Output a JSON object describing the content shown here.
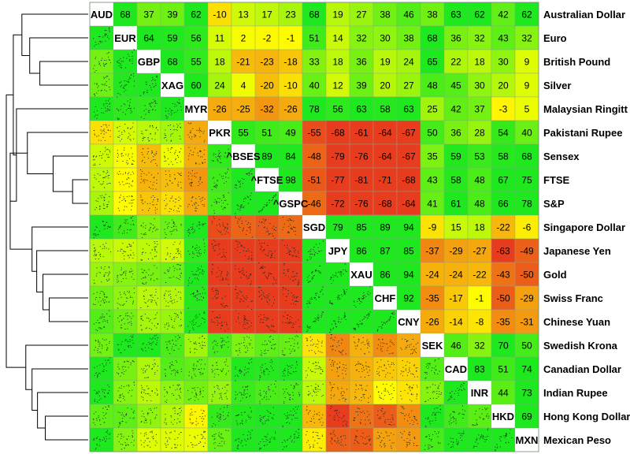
{
  "chart_data": {
    "type": "heatmap",
    "title": "",
    "codes": [
      "AUD",
      "EUR",
      "GBP",
      "XAG",
      "MYR",
      "PKR",
      "^BSESN",
      "^FTSE",
      "^GSPC",
      "SGD",
      "JPY",
      "XAU",
      "CHF",
      "CNY",
      "SEK",
      "CAD",
      "INR",
      "HKD",
      "MXN"
    ],
    "diag_labels": [
      "AUD",
      "EUR",
      "GBP",
      "XAG",
      "MYR",
      "PKR",
      "^BSES",
      "^FTSE",
      "^GSPC",
      "SGD",
      "JPY",
      "XAU",
      "CHF",
      "CNY",
      "SEK",
      "CAD",
      "INR",
      "HKD",
      "MXN"
    ],
    "names": [
      "Australian Dollar",
      "Euro",
      "British Pound",
      "Silver",
      "Malaysian Ringitt",
      "Pakistani Rupee",
      "Sensex",
      "FTSE",
      "S&P",
      "Singapore Dollar",
      "Japanese Yen",
      "Gold",
      "Swiss Franc",
      "Chinese Yuan",
      "Swedish Krona",
      "Canadian Dollar",
      "Indian Rupee",
      "Hong Kong Dollar",
      "Mexican Peso"
    ],
    "correlations": [
      [
        null,
        68,
        37,
        39,
        62,
        -10,
        13,
        17,
        23,
        68,
        19,
        27,
        38,
        46,
        38,
        63,
        62,
        42,
        62
      ],
      [
        null,
        null,
        64,
        59,
        56,
        11,
        2,
        -2,
        -1,
        51,
        14,
        32,
        30,
        38,
        68,
        36,
        32,
        43,
        32
      ],
      [
        null,
        null,
        null,
        68,
        55,
        18,
        -21,
        -23,
        -18,
        33,
        18,
        36,
        19,
        24,
        65,
        22,
        18,
        30,
        9
      ],
      [
        null,
        null,
        null,
        null,
        60,
        24,
        4,
        -20,
        -10,
        40,
        12,
        39,
        20,
        27,
        48,
        45,
        30,
        20,
        9
      ],
      [
        null,
        null,
        null,
        null,
        null,
        -26,
        -25,
        -32,
        -26,
        78,
        56,
        63,
        58,
        63,
        25,
        42,
        37,
        -3,
        5
      ],
      [
        null,
        null,
        null,
        null,
        null,
        null,
        55,
        51,
        49,
        -55,
        -68,
        -61,
        -64,
        -67,
        50,
        36,
        28,
        54,
        40
      ],
      [
        null,
        null,
        null,
        null,
        null,
        null,
        null,
        89,
        84,
        -48,
        -79,
        -76,
        -64,
        -67,
        35,
        59,
        53,
        58,
        68
      ],
      [
        null,
        null,
        null,
        null,
        null,
        null,
        null,
        null,
        98,
        -51,
        -77,
        -81,
        -71,
        -68,
        43,
        58,
        48,
        67,
        75
      ],
      [
        null,
        null,
        null,
        null,
        null,
        null,
        null,
        null,
        null,
        -46,
        -72,
        -76,
        -68,
        -64,
        41,
        61,
        48,
        66,
        78
      ],
      [
        null,
        null,
        null,
        null,
        null,
        null,
        null,
        null,
        null,
        null,
        79,
        85,
        89,
        94,
        -9,
        15,
        18,
        -22,
        -6
      ],
      [
        null,
        null,
        null,
        null,
        null,
        null,
        null,
        null,
        null,
        null,
        null,
        86,
        87,
        85,
        -37,
        -29,
        -27,
        -63,
        -49
      ],
      [
        null,
        null,
        null,
        null,
        null,
        null,
        null,
        null,
        null,
        null,
        null,
        null,
        86,
        94,
        -24,
        -24,
        -22,
        -43,
        -50
      ],
      [
        null,
        null,
        null,
        null,
        null,
        null,
        null,
        null,
        null,
        null,
        null,
        null,
        null,
        92,
        -35,
        -17,
        -1,
        -50,
        -29
      ],
      [
        null,
        null,
        null,
        null,
        null,
        null,
        null,
        null,
        null,
        null,
        null,
        null,
        null,
        null,
        -26,
        -14,
        -8,
        -35,
        -31
      ],
      [
        null,
        null,
        null,
        null,
        null,
        null,
        null,
        null,
        null,
        null,
        null,
        null,
        null,
        null,
        null,
        46,
        32,
        70,
        50
      ],
      [
        null,
        null,
        null,
        null,
        null,
        null,
        null,
        null,
        null,
        null,
        null,
        null,
        null,
        null,
        null,
        null,
        83,
        51,
        74
      ],
      [
        null,
        null,
        null,
        null,
        null,
        null,
        null,
        null,
        null,
        null,
        null,
        null,
        null,
        null,
        null,
        null,
        null,
        44,
        73
      ],
      [
        null,
        null,
        null,
        null,
        null,
        null,
        null,
        null,
        null,
        null,
        null,
        null,
        null,
        null,
        null,
        null,
        null,
        null,
        69
      ],
      [
        null,
        null,
        null,
        null,
        null,
        null,
        null,
        null,
        null,
        null,
        null,
        null,
        null,
        null,
        null,
        null,
        null,
        null,
        null
      ]
    ],
    "lower_panels": "scatterplots",
    "color_scale": {
      "negative": "#e83c1e",
      "zero": "#ffff00",
      "positive": "#1ee81e"
    },
    "dendrogram": "left",
    "legend": "none",
    "grid": true
  }
}
